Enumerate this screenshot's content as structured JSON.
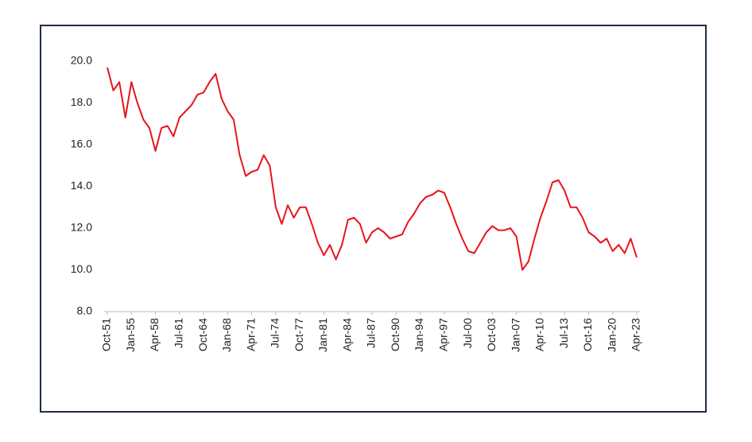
{
  "chart_data": {
    "type": "line",
    "categories": [
      "Oct-51",
      null,
      null,
      null,
      "Jan-55",
      null,
      null,
      null,
      "Apr-58",
      null,
      null,
      null,
      "Jul-61",
      null,
      null,
      null,
      "Oct-64",
      null,
      null,
      null,
      "Jan-68",
      null,
      null,
      null,
      "Apr-71",
      null,
      null,
      null,
      "Jul-74",
      null,
      null,
      null,
      "Oct-77",
      null,
      null,
      null,
      "Jan-81",
      null,
      null,
      null,
      "Apr-84",
      null,
      null,
      null,
      "Jul-87",
      null,
      null,
      null,
      "Oct-90",
      null,
      null,
      null,
      "Jan-94",
      null,
      null,
      null,
      "Apr-97",
      null,
      null,
      null,
      "Jul-00",
      null,
      null,
      null,
      "Oct-03",
      null,
      null,
      null,
      "Jan-07",
      null,
      null,
      null,
      "Apr-10",
      null,
      null,
      null,
      "Jul-13",
      null,
      null,
      null,
      "Oct-16",
      null,
      null,
      null,
      "Jan-20",
      null,
      null,
      null,
      "Apr-23"
    ],
    "series": [
      {
        "color": "#e8141b",
        "values": [
          19.7,
          18.6,
          19.0,
          17.3,
          19.0,
          18.0,
          17.2,
          16.8,
          15.7,
          16.8,
          16.9,
          16.4,
          17.3,
          17.6,
          17.9,
          18.4,
          18.5,
          19.0,
          19.4,
          18.2,
          17.6,
          17.2,
          15.5,
          14.5,
          14.7,
          14.8,
          15.5,
          15.0,
          13.0,
          12.2,
          13.1,
          12.5,
          13.0,
          13.0,
          12.2,
          11.3,
          10.7,
          11.2,
          10.5,
          11.2,
          12.4,
          12.5,
          12.2,
          11.3,
          11.8,
          12.0,
          11.8,
          11.5,
          11.6,
          11.7,
          12.3,
          12.7,
          13.2,
          13.5,
          13.6,
          13.8,
          13.7,
          13.0,
          12.2,
          11.5,
          10.9,
          10.8,
          11.3,
          11.8,
          12.1,
          11.9,
          11.9,
          12.0,
          11.6,
          10.0,
          10.4,
          11.5,
          12.5,
          13.3,
          14.2,
          14.3,
          13.8,
          13.0,
          13.0,
          12.5,
          11.8,
          11.6,
          11.3,
          11.5,
          10.9,
          11.2,
          10.8,
          11.5,
          10.6
        ]
      }
    ],
    "ylim": [
      8,
      20
    ],
    "yticks": [
      {
        "value": 8,
        "label": "8.0"
      },
      {
        "value": 10,
        "label": "10.0"
      },
      {
        "value": 12,
        "label": "12.0"
      },
      {
        "value": 14,
        "label": "14.0"
      },
      {
        "value": 16,
        "label": "16.0"
      },
      {
        "value": 18,
        "label": "18.0"
      },
      {
        "value": 20,
        "label": "20.0"
      }
    ],
    "grid": false
  }
}
